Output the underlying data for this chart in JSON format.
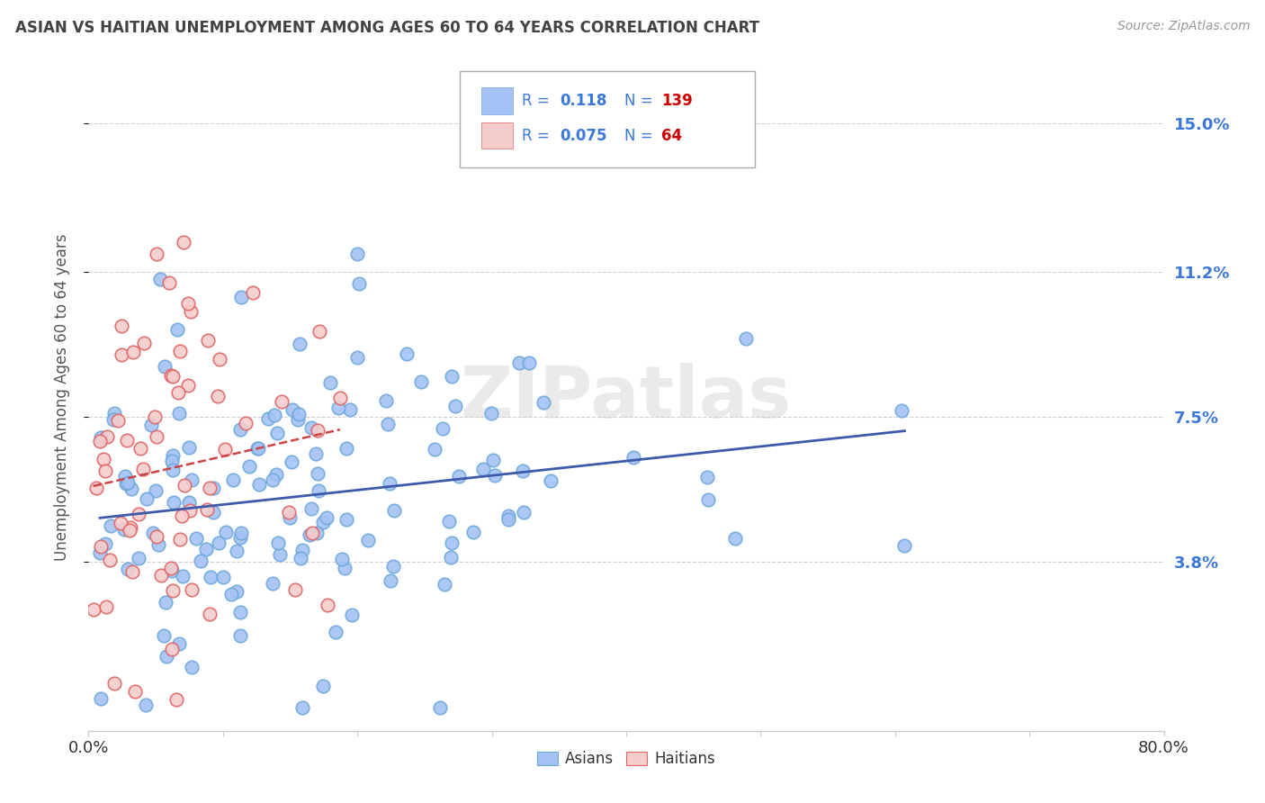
{
  "title": "ASIAN VS HAITIAN UNEMPLOYMENT AMONG AGES 60 TO 64 YEARS CORRELATION CHART",
  "source": "Source: ZipAtlas.com",
  "ylabel": "Unemployment Among Ages 60 to 64 years",
  "ytick_labels": [
    "3.8%",
    "7.5%",
    "11.2%",
    "15.0%"
  ],
  "ytick_values": [
    0.038,
    0.075,
    0.112,
    0.15
  ],
  "xlim": [
    0.0,
    0.8
  ],
  "ylim": [
    -0.005,
    0.165
  ],
  "asian_color": "#a4c2f4",
  "haitian_color": "#f4cccc",
  "asian_edge_color": "#6fa8dc",
  "haitian_edge_color": "#e06666",
  "asian_line_color": "#3c5aaa",
  "haitian_line_color": "#cc4444",
  "legend_color": "#3c78d8",
  "legend_N_color": "#cc0000",
  "legend_R_asian": "0.118",
  "legend_N_asian": "139",
  "legend_R_haitian": "0.075",
  "legend_N_haitian": "64",
  "watermark": "ZIPatlas",
  "title_color": "#434343",
  "source_color": "#999999",
  "ytick_color": "#3c78d8",
  "grid_color": "#cccccc"
}
